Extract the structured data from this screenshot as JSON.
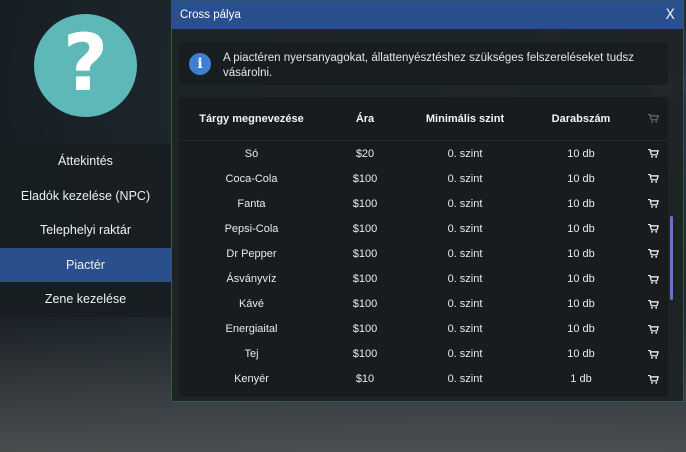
{
  "window": {
    "title": "Cross pálya",
    "close_label": "X"
  },
  "info": {
    "icon": "info-icon",
    "text": "A piactéren nyersanyagokat, állattenyésztéshez szükséges felszereléseket tudsz vásárolni."
  },
  "avatar": {
    "glyph": "?"
  },
  "sidebar": {
    "items": [
      {
        "label": "Áttekintés"
      },
      {
        "label": "Eladók kezelése (NPC)"
      },
      {
        "label": "Telephelyi raktár"
      },
      {
        "label": "Piactér",
        "active": true
      },
      {
        "label": "Zene kezelése"
      }
    ]
  },
  "table": {
    "headers": [
      "Tárgy megnevezése",
      "Ára",
      "Minimális szint",
      "Darabszám"
    ],
    "rows": [
      [
        "Só",
        "$20",
        "0. szint",
        "10 db"
      ],
      [
        "Coca-Cola",
        "$100",
        "0. szint",
        "10 db"
      ],
      [
        "Fanta",
        "$100",
        "0. szint",
        "10 db"
      ],
      [
        "Pepsi-Cola",
        "$100",
        "0. szint",
        "10 db"
      ],
      [
        "Dr Pepper",
        "$100",
        "0. szint",
        "10 db"
      ],
      [
        "Ásványvíz",
        "$100",
        "0. szint",
        "10 db"
      ],
      [
        "Kávé",
        "$100",
        "0. szint",
        "10 db"
      ],
      [
        "Energiaital",
        "$100",
        "0. szint",
        "10 db"
      ],
      [
        "Tej",
        "$100",
        "0. szint",
        "10 db"
      ],
      [
        "Kenyér",
        "$10",
        "0. szint",
        "1 db"
      ]
    ],
    "buy_icon": "cart-icon"
  },
  "colors": {
    "accent": "#2a4f8e",
    "active_tab": "#2b4e8c",
    "avatar": "#5fb8b8",
    "info_icon": "#3e7fd4",
    "scrollbar": "#6a73c4"
  },
  "scroll": {
    "position_fraction": 0.55
  }
}
